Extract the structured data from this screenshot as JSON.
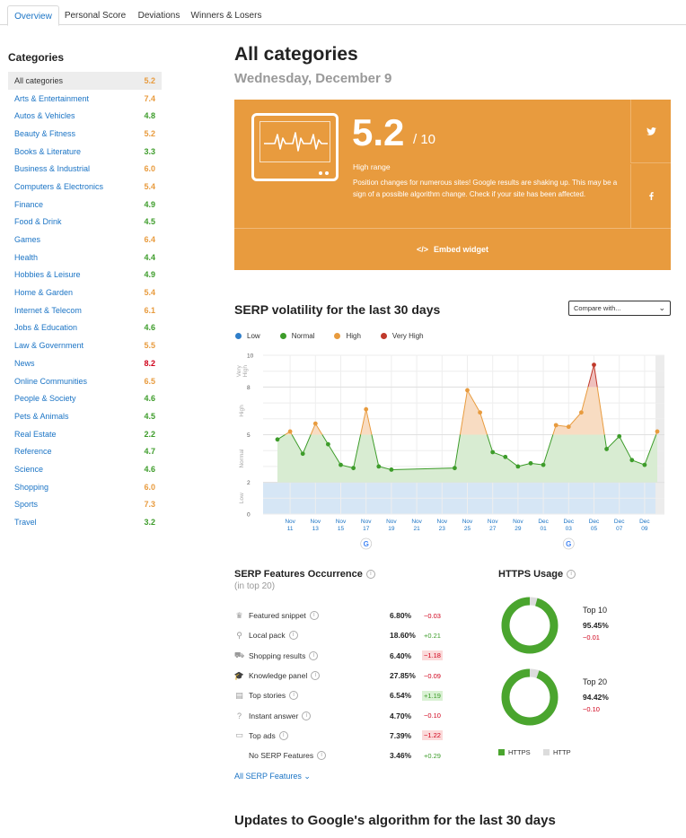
{
  "tabs": [
    "Overview",
    "Personal Score",
    "Deviations",
    "Winners & Losers"
  ],
  "sidebar": {
    "title": "Categories",
    "items": [
      {
        "name": "All categories",
        "score": "5.2",
        "color": "#e89b3e"
      },
      {
        "name": "Arts & Entertainment",
        "score": "7.4",
        "color": "#e89b3e"
      },
      {
        "name": "Autos & Vehicles",
        "score": "4.8",
        "color": "#3d9c2a"
      },
      {
        "name": "Beauty & Fitness",
        "score": "5.2",
        "color": "#e89b3e"
      },
      {
        "name": "Books & Literature",
        "score": "3.3",
        "color": "#3d9c2a"
      },
      {
        "name": "Business & Industrial",
        "score": "6.0",
        "color": "#e89b3e"
      },
      {
        "name": "Computers & Electronics",
        "score": "5.4",
        "color": "#e89b3e"
      },
      {
        "name": "Finance",
        "score": "4.9",
        "color": "#3d9c2a"
      },
      {
        "name": "Food & Drink",
        "score": "4.5",
        "color": "#3d9c2a"
      },
      {
        "name": "Games",
        "score": "6.4",
        "color": "#e89b3e"
      },
      {
        "name": "Health",
        "score": "4.4",
        "color": "#3d9c2a"
      },
      {
        "name": "Hobbies & Leisure",
        "score": "4.9",
        "color": "#3d9c2a"
      },
      {
        "name": "Home & Garden",
        "score": "5.4",
        "color": "#e89b3e"
      },
      {
        "name": "Internet & Telecom",
        "score": "6.1",
        "color": "#e89b3e"
      },
      {
        "name": "Jobs & Education",
        "score": "4.6",
        "color": "#3d9c2a"
      },
      {
        "name": "Law & Government",
        "score": "5.5",
        "color": "#e89b3e"
      },
      {
        "name": "News",
        "score": "8.2",
        "color": "#d0021b"
      },
      {
        "name": "Online Communities",
        "score": "6.5",
        "color": "#e89b3e"
      },
      {
        "name": "People & Society",
        "score": "4.6",
        "color": "#3d9c2a"
      },
      {
        "name": "Pets & Animals",
        "score": "4.5",
        "color": "#3d9c2a"
      },
      {
        "name": "Real Estate",
        "score": "2.2",
        "color": "#3d9c2a"
      },
      {
        "name": "Reference",
        "score": "4.7",
        "color": "#3d9c2a"
      },
      {
        "name": "Science",
        "score": "4.6",
        "color": "#3d9c2a"
      },
      {
        "name": "Shopping",
        "score": "6.0",
        "color": "#e89b3e"
      },
      {
        "name": "Sports",
        "score": "7.3",
        "color": "#e89b3e"
      },
      {
        "name": "Travel",
        "score": "3.2",
        "color": "#3d9c2a"
      }
    ]
  },
  "main": {
    "title": "All categories",
    "date": "Wednesday, December 9",
    "score": "5.2",
    "score_of": "/ 10",
    "range": "High range",
    "description": "Position changes for numerous sites! Google results are shaking up. This may be a sign of a possible algorithm change. Check if your site has been affected.",
    "embed": "Embed widget",
    "social": {
      "twitter": "twitter-icon",
      "facebook": "facebook-icon"
    }
  },
  "volatility": {
    "title": "SERP volatility for the last 30 days",
    "compare": "Compare with...",
    "legend": [
      {
        "label": "Low",
        "color": "#2f7ec9"
      },
      {
        "label": "Normal",
        "color": "#3d9c2a"
      },
      {
        "label": "High",
        "color": "#e89b3e"
      },
      {
        "label": "Very High",
        "color": "#c0392b"
      }
    ]
  },
  "chart_data": {
    "type": "line",
    "title": "SERP volatility for the last 30 days",
    "ylim": [
      0,
      10
    ],
    "y_ticks": [
      "0",
      "2",
      "5",
      "8",
      "10"
    ],
    "zones": [
      {
        "label": "Low",
        "from": 0,
        "to": 2
      },
      {
        "label": "Normal",
        "from": 2,
        "to": 5
      },
      {
        "label": "High",
        "from": 5,
        "to": 8
      },
      {
        "label": "Very High",
        "from": 8,
        "to": 10
      }
    ],
    "x_labels": [
      {
        "m": "Nov",
        "d": "11"
      },
      {
        "m": "Nov",
        "d": "13"
      },
      {
        "m": "Nov",
        "d": "15"
      },
      {
        "m": "Nov",
        "d": "17"
      },
      {
        "m": "Nov",
        "d": "19"
      },
      {
        "m": "Nov",
        "d": "21"
      },
      {
        "m": "Nov",
        "d": "23"
      },
      {
        "m": "Nov",
        "d": "25"
      },
      {
        "m": "Nov",
        "d": "27"
      },
      {
        "m": "Nov",
        "d": "29"
      },
      {
        "m": "Dec",
        "d": "01"
      },
      {
        "m": "Dec",
        "d": "03"
      },
      {
        "m": "Dec",
        "d": "05"
      },
      {
        "m": "Dec",
        "d": "07"
      },
      {
        "m": "Dec",
        "d": "09"
      }
    ],
    "x_start": "Nov 10",
    "values": [
      4.7,
      5.2,
      3.8,
      5.7,
      4.4,
      3.1,
      2.9,
      6.6,
      3.0,
      2.8,
      null,
      null,
      null,
      null,
      2.9,
      7.8,
      6.4,
      3.9,
      3.6,
      3.0,
      3.2,
      3.1,
      5.6,
      5.5,
      6.4,
      9.4,
      4.1,
      4.9,
      3.4,
      3.1,
      5.2
    ],
    "annotation_days": [
      "Nov 17",
      "Dec 03"
    ]
  },
  "features": {
    "title": "SERP Features Occurrence",
    "subtitle": "(in top 20)",
    "items": [
      {
        "icon": "crown-icon",
        "glyph": "♛",
        "name": "Featured snippet",
        "pct": "6.80%",
        "delta": "−0.03",
        "trend": "neg",
        "bg": false
      },
      {
        "icon": "pin-icon",
        "glyph": "⚲",
        "name": "Local pack",
        "pct": "18.60%",
        "delta": "+0.21",
        "trend": "pos",
        "bg": false
      },
      {
        "icon": "cart-icon",
        "glyph": "⛟",
        "name": "Shopping results",
        "pct": "6.40%",
        "delta": "−1.18",
        "trend": "neg",
        "bg": true
      },
      {
        "icon": "graduation-cap-icon",
        "glyph": "🎓",
        "name": "Knowledge panel",
        "pct": "27.85%",
        "delta": "−0.09",
        "trend": "neg",
        "bg": false
      },
      {
        "icon": "newspaper-icon",
        "glyph": "▤",
        "name": "Top stories",
        "pct": "6.54%",
        "delta": "+1.19",
        "trend": "pos",
        "bg": true
      },
      {
        "icon": "question-icon",
        "glyph": "?",
        "name": "Instant answer",
        "pct": "4.70%",
        "delta": "−0.10",
        "trend": "neg",
        "bg": false
      },
      {
        "icon": "ads-icon",
        "glyph": "▭",
        "name": "Top ads",
        "pct": "7.39%",
        "delta": "−1.22",
        "trend": "neg",
        "bg": true
      },
      {
        "icon": "",
        "glyph": "",
        "name": "No SERP Features",
        "pct": "3.46%",
        "delta": "+0.29",
        "trend": "pos",
        "bg": false
      }
    ],
    "all_link": "All SERP Features"
  },
  "https": {
    "title": "HTTPS Usage",
    "items": [
      {
        "label": "Top 10",
        "pct": "95.45%",
        "value": 95.45,
        "delta": "−0.01"
      },
      {
        "label": "Top 20",
        "pct": "94.42%",
        "value": 94.42,
        "delta": "−0.10"
      }
    ],
    "legend": [
      {
        "label": "HTTPS",
        "color": "#4aa52e"
      },
      {
        "label": "HTTP",
        "color": "#dcdcdc"
      }
    ]
  },
  "updates": {
    "title": "Updates to Google's algorithm for the last 30 days"
  }
}
